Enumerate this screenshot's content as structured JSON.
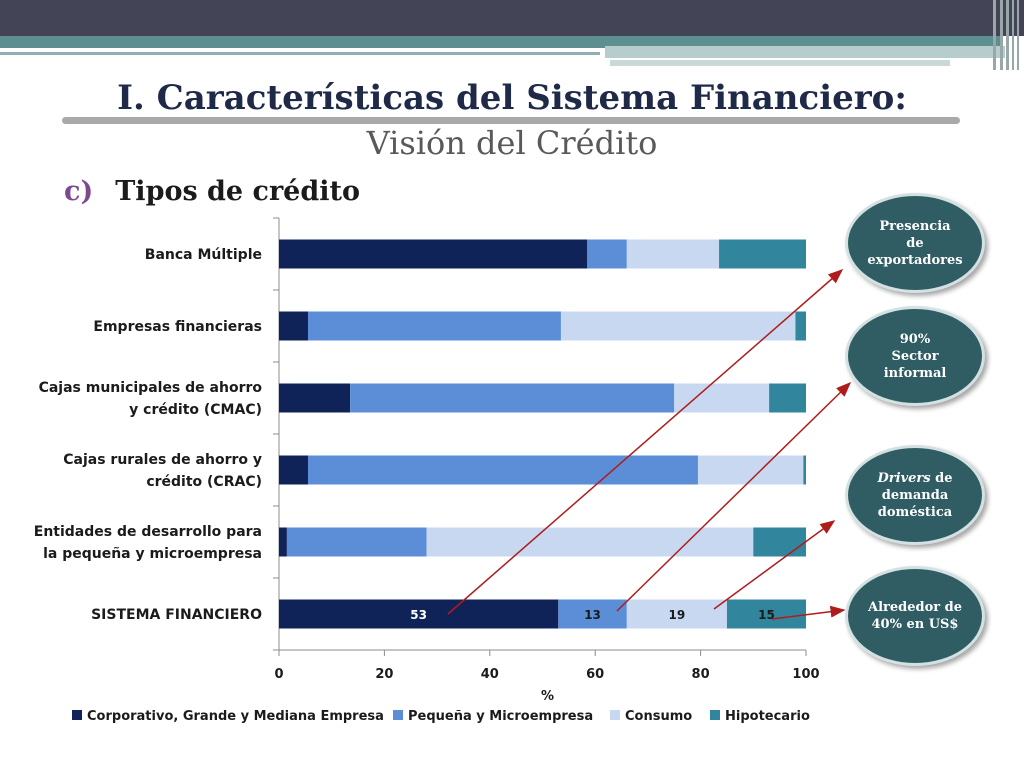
{
  "title": "I. Características del Sistema Financiero:",
  "subtitle": "Visión del Crédito",
  "section": {
    "marker": "c)",
    "text": "Tipos de crédito"
  },
  "bubbles": [
    {
      "lines": [
        "Presencia",
        "de",
        "exportadores"
      ]
    },
    {
      "lines": [
        "90%",
        "Sector informal"
      ]
    },
    {
      "italic": "Drivers",
      "rest": " de",
      "lines": [
        "demanda",
        "doméstica"
      ]
    },
    {
      "lines": [
        "Alrededor de",
        "40% en US$"
      ]
    }
  ],
  "colors": {
    "corporativo": "#0f2359",
    "pequena": "#5b8ed6",
    "consumo": "#c7d8f0",
    "hipotecario": "#31859c",
    "arrow": "#b01c1c"
  },
  "chart_data": {
    "type": "bar",
    "orientation": "horizontal",
    "stacked": true,
    "categories": [
      "Banca Múltiple",
      "Empresas financieras",
      "Cajas municipales de ahorro y crédito (CMAC)",
      "Cajas rurales de ahorro y crédito (CRAC)",
      "Entidades de desarrollo para la pequeña y  microempresa",
      "SISTEMA FINANCIERO"
    ],
    "category_lines": [
      [
        "Banca Múltiple"
      ],
      [
        "Empresas financieras"
      ],
      [
        "Cajas municipales de ahorro",
        "y crédito (CMAC)"
      ],
      [
        "Cajas rurales de ahorro y",
        "crédito (CRAC)"
      ],
      [
        "Entidades de desarrollo para",
        "la pequeña y  microempresa"
      ],
      [
        "SISTEMA FINANCIERO"
      ]
    ],
    "series": [
      {
        "name": "Corporativo, Grande y Mediana Empresa",
        "values": [
          58.5,
          5.5,
          13.5,
          5.5,
          1.5,
          53
        ]
      },
      {
        "name": "Pequeña y Microempresa",
        "values": [
          7.5,
          48,
          61.5,
          74,
          26.5,
          13
        ]
      },
      {
        "name": "Consumo",
        "values": [
          17.5,
          44.5,
          18,
          20,
          62,
          19
        ]
      },
      {
        "name": "Hipotecario",
        "values": [
          16.5,
          2,
          7,
          0.5,
          10,
          15
        ]
      }
    ],
    "data_labels": {
      "5": [
        "53",
        "13",
        "19",
        "15"
      ]
    },
    "xlim": [
      0,
      100
    ],
    "xticks": [
      "0",
      "20",
      "40",
      "60",
      "80",
      "100"
    ],
    "xlabel": "%",
    "legend_position": "bottom"
  }
}
